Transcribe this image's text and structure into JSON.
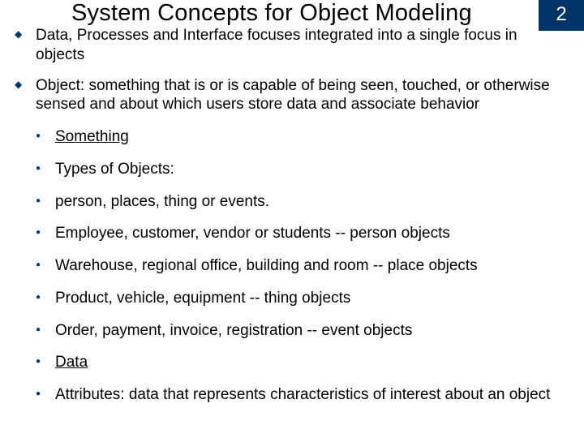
{
  "title": "System Concepts for Object Modeling",
  "page_number": "2",
  "colors": {
    "accent": "#003366",
    "text": "#000000",
    "background": "#ffffff"
  },
  "typography": {
    "title_fontsize_pt": 22,
    "body_fontsize_pt": 14,
    "font_family": "Arial"
  },
  "bullets": [
    {
      "text": "Data, Processes and Interface focuses integrated into a single focus in objects"
    },
    {
      "text": "Object: something that is or is capable of being seen, touched, or otherwise sensed and about which users store data and associate behavior",
      "sub": [
        {
          "text": "Something",
          "underline": true
        },
        {
          "text": "Types of Objects:"
        },
        {
          "text": "person, places, thing or events."
        },
        {
          "text": "Employee, customer, vendor or students -- person objects"
        },
        {
          "text": "Warehouse, regional office, building and room -- place objects"
        },
        {
          "text": "Product, vehicle, equipment -- thing objects"
        },
        {
          "text": "Order, payment, invoice, registration -- event objects"
        },
        {
          "text": "Data",
          "underline": true
        },
        {
          "text": "Attributes: data that represents characteristics of interest about an object"
        }
      ]
    }
  ]
}
